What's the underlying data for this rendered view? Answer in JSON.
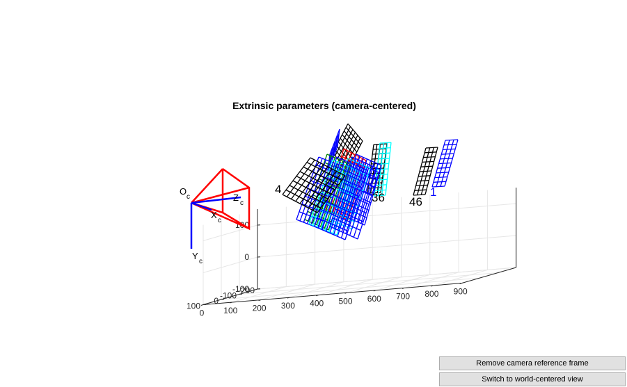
{
  "figure": {
    "title": "Extrinsic parameters (camera-centered)"
  },
  "chart_data": {
    "type": "3d-wireframe",
    "title": "Extrinsic parameters (camera-centered)",
    "axes": {
      "x": {
        "ticks": [
          0,
          100,
          200,
          300,
          400,
          500,
          600,
          700,
          800,
          900
        ],
        "range": [
          0,
          900
        ]
      },
      "y": {
        "ticks": [
          -200,
          -100,
          0,
          100
        ],
        "range": [
          -200,
          100
        ]
      },
      "z": {
        "ticks": [
          -100,
          0,
          100
        ],
        "range": [
          -100,
          150
        ]
      }
    },
    "camera": {
      "origin_label": "O",
      "origin_subscript": "c",
      "axis_labels": [
        {
          "letter": "Z",
          "sub": "c"
        },
        {
          "letter": "X",
          "sub": "c"
        },
        {
          "letter": "Y",
          "sub": "c"
        }
      ],
      "frustum_color": "#ff0000",
      "axes_color": "#0000ff"
    },
    "board_labels": [
      {
        "text": "4",
        "color": "#000000"
      },
      {
        "text": "36",
        "color": "#000000"
      },
      {
        "text": "46",
        "color": "#000000"
      },
      {
        "text": "1",
        "color": "#0000ff"
      }
    ],
    "board_colors": [
      "#000000",
      "#0000ff",
      "#00ffff",
      "#008000",
      "#ff0000"
    ],
    "grid": true
  },
  "buttons": {
    "remove_camera": "Remove camera reference frame",
    "switch_view": "Switch to world-centered view"
  }
}
